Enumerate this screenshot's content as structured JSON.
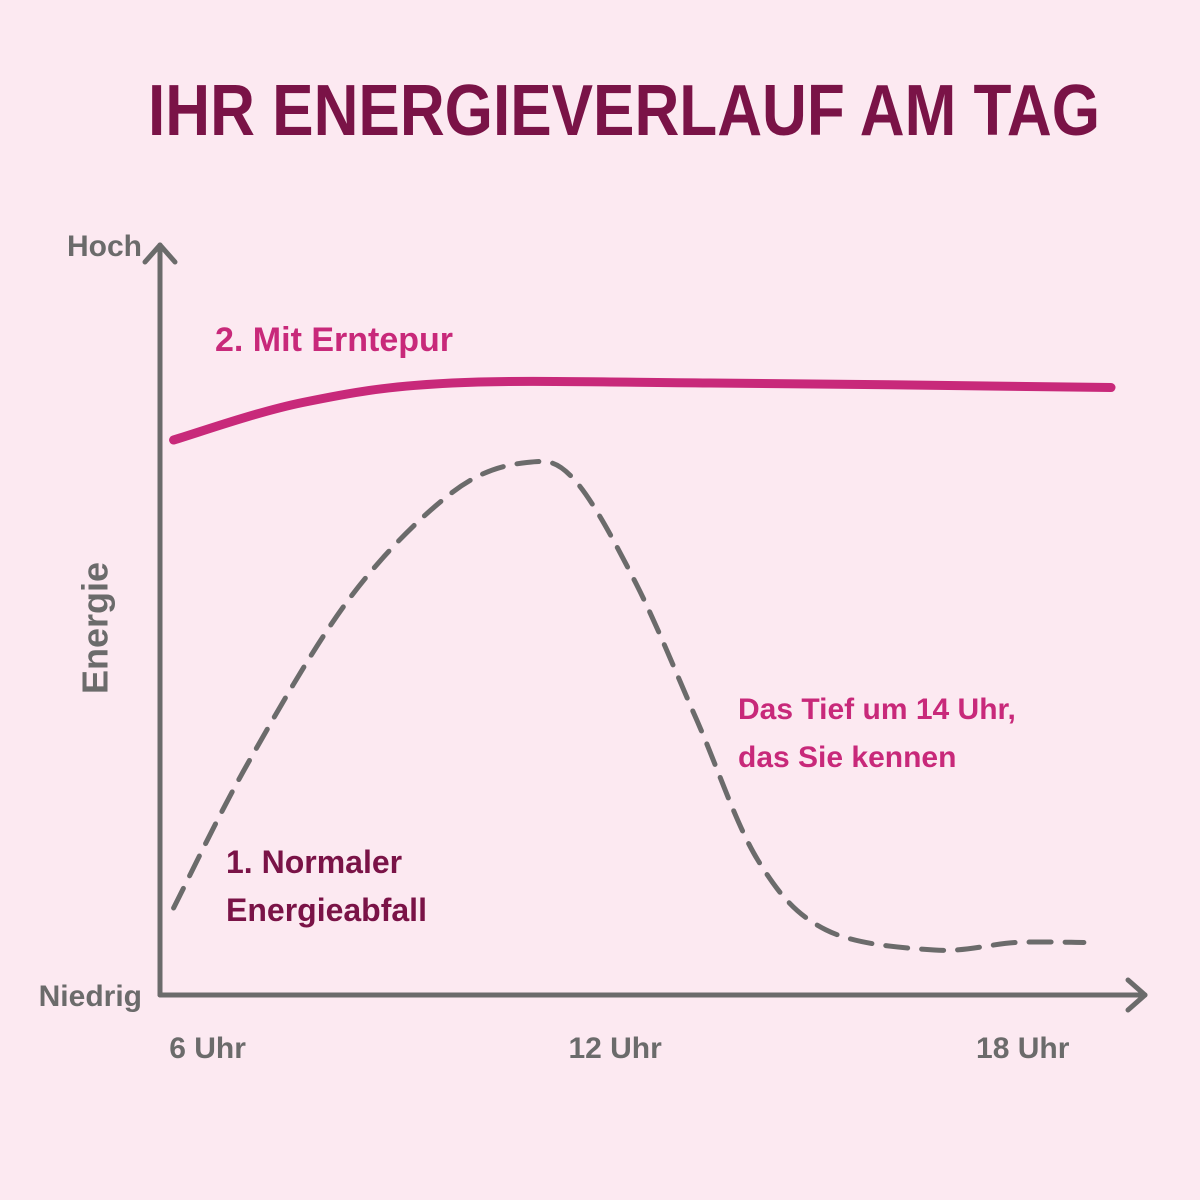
{
  "chart_data": {
    "type": "line",
    "title": "IHR ENERGIEVERLAUF AM TAG",
    "y_label": "Energie",
    "annotation": "Das Tief um 14 Uhr, das Sie kennen",
    "xlim": [
      5.3,
      19.8
    ],
    "xticks": [
      {
        "value": 6,
        "label": "6 Uhr"
      },
      {
        "value": 12,
        "label": "12 Uhr"
      },
      {
        "value": 18,
        "label": "18 Uhr"
      }
    ],
    "ylim": [
      0,
      100
    ],
    "yticks": [
      {
        "value": 0,
        "label": "Niedrig"
      },
      {
        "value": 100,
        "label": "Hoch"
      }
    ],
    "series": [
      {
        "name": "2. Mit Erntepur",
        "color": "#c8297a",
        "style": "solid",
        "x": [
          5.5,
          7.4,
          9.6,
          13.4,
          19.3
        ],
        "values": [
          74,
          79,
          81.6,
          81.6,
          81
        ]
      },
      {
        "name": "1. Normaler Energieabfall",
        "color": "#6b6b6b",
        "style": "dashed",
        "x": [
          5.5,
          6.6,
          8.1,
          9.6,
          10.7,
          11.4,
          12.3,
          13.2,
          14.1,
          15.1,
          16.7,
          17.9,
          18.9
        ],
        "values": [
          11.6,
          31,
          53,
          67,
          71,
          68.7,
          55,
          36.7,
          18,
          8.7,
          6,
          7,
          7
        ]
      }
    ]
  }
}
